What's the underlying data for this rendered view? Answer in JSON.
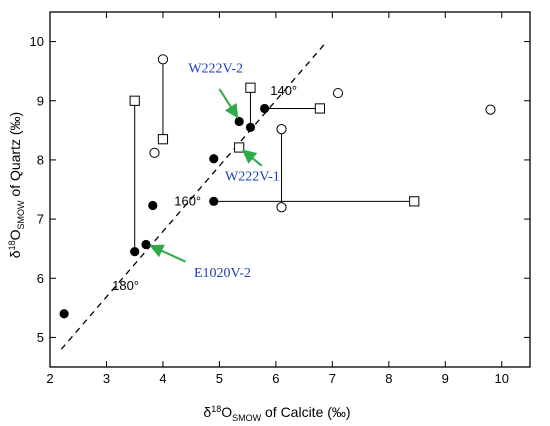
{
  "chart_data": {
    "type": "scatter",
    "xlabel_parts": {
      "pre": "δ",
      "sup": "18",
      "o": "O",
      "sub": "SMOW",
      "post": " of Calcite (‰)"
    },
    "ylabel_parts": {
      "pre": "δ",
      "sup": "18",
      "o": "O",
      "sub": "SMOW",
      "post": " of Quartz (‰)"
    },
    "xlim": [
      2,
      10.5
    ],
    "ylim": [
      4.5,
      10.5
    ],
    "xticks": [
      "2",
      "3",
      "4",
      "5",
      "6",
      "7",
      "8",
      "9",
      "10"
    ],
    "yticks": [
      "5",
      "6",
      "7",
      "8",
      "9",
      "10"
    ],
    "grid": false,
    "dashed_line": {
      "x": [
        2.2,
        6.9
      ],
      "y": [
        4.8,
        10.0
      ]
    },
    "segments": [
      {
        "from": [
          3.5,
          9.0
        ],
        "to": [
          3.5,
          6.45
        ]
      },
      {
        "from": [
          4.0,
          9.7
        ],
        "to": [
          4.0,
          8.35
        ]
      },
      {
        "from": [
          5.55,
          9.22
        ],
        "to": [
          5.55,
          8.55
        ]
      },
      {
        "from": [
          5.8,
          8.87
        ],
        "to": [
          6.78,
          8.87
        ]
      },
      {
        "from": [
          6.1,
          8.52
        ],
        "to": [
          6.1,
          7.2
        ]
      },
      {
        "from": [
          4.9,
          7.3
        ],
        "to": [
          8.45,
          7.3
        ]
      }
    ],
    "series": [
      {
        "marker": "filled-circle",
        "points": [
          [
            2.25,
            5.4
          ],
          [
            3.5,
            6.45
          ],
          [
            3.7,
            6.57
          ],
          [
            3.82,
            7.23
          ],
          [
            4.9,
            7.3
          ],
          [
            4.9,
            8.02
          ],
          [
            5.35,
            8.65
          ],
          [
            5.55,
            8.55
          ],
          [
            5.8,
            8.87
          ]
        ]
      },
      {
        "marker": "open-circle",
        "points": [
          [
            3.85,
            8.12
          ],
          [
            4.0,
            9.7
          ],
          [
            6.1,
            8.52
          ],
          [
            6.1,
            7.2
          ],
          [
            7.1,
            9.13
          ],
          [
            9.8,
            8.85
          ]
        ]
      },
      {
        "marker": "open-square",
        "points": [
          [
            3.5,
            9.0
          ],
          [
            4.0,
            8.35
          ],
          [
            5.55,
            9.22
          ],
          [
            5.35,
            8.21
          ],
          [
            6.78,
            8.87
          ],
          [
            8.45,
            7.3
          ]
        ]
      }
    ],
    "annotations": [
      {
        "text": "W222V-2",
        "style": "blue",
        "at": [
          4.45,
          9.48
        ],
        "arrow": {
          "from": [
            5.0,
            9.2
          ],
          "to": [
            5.32,
            8.72
          ]
        }
      },
      {
        "text": "W222V-1",
        "style": "blue",
        "at": [
          5.1,
          7.65
        ],
        "arrow": {
          "from": [
            5.75,
            7.9
          ],
          "to": [
            5.42,
            8.16
          ]
        }
      },
      {
        "text": "E1020V-2",
        "style": "blue",
        "at": [
          4.55,
          6.02
        ],
        "arrow": {
          "from": [
            4.4,
            6.28
          ],
          "to": [
            3.78,
            6.55
          ]
        }
      },
      {
        "text": "140°",
        "style": "black",
        "at": [
          5.9,
          9.1
        ]
      },
      {
        "text": "160°",
        "style": "black",
        "at": [
          4.2,
          7.23
        ]
      },
      {
        "text": "180°",
        "style": "black",
        "at": [
          3.1,
          5.8
        ]
      }
    ],
    "colors": {
      "axis": "#000000",
      "marker": "#000000",
      "label_blue": "#1a3fb8",
      "arrow_green": "#2eaa4a"
    }
  }
}
